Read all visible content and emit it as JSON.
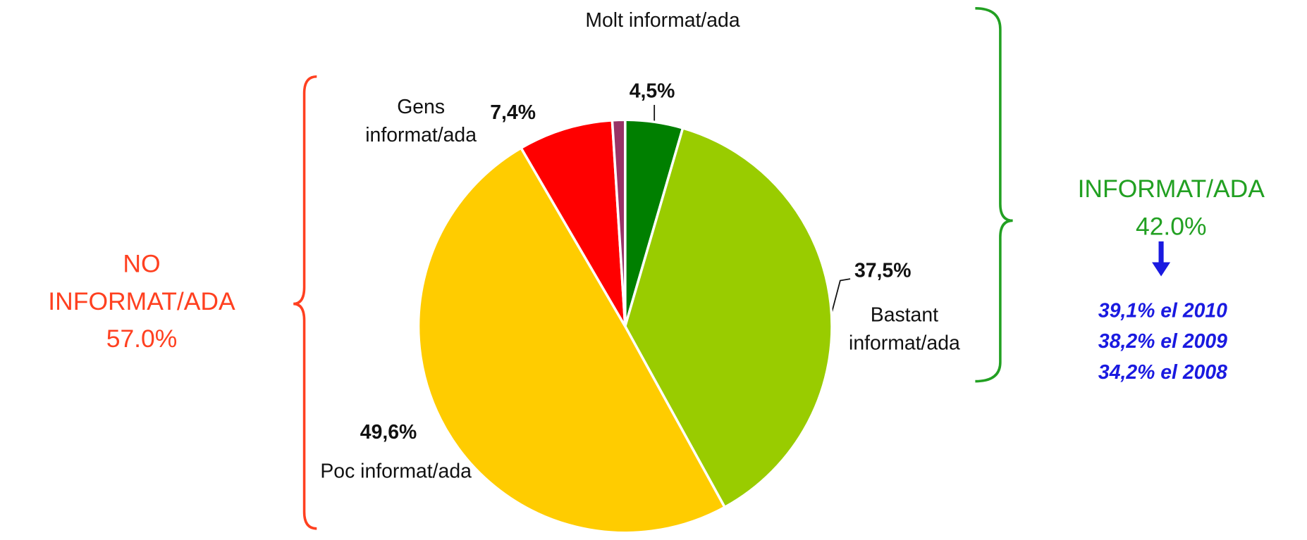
{
  "chart_data": {
    "type": "pie",
    "categories": [
      "Molt informat/ada",
      "Bastant informat/ada",
      "Poc informat/ada",
      "Gens informat/ada",
      null
    ],
    "values": [
      4.5,
      37.5,
      49.6,
      7.4,
      1.0
    ],
    "value_labels": [
      "4,5%",
      "37,5%",
      "49,6%",
      "7,4%",
      null
    ],
    "colors": [
      "#007f00",
      "#99cc00",
      "#ffcc00",
      "#ff0000",
      "#993366"
    ],
    "groups": [
      {
        "lines": [
          "NO",
          "INFORMAT/ADA",
          "57.0%"
        ],
        "color": "#ff4020"
      },
      {
        "lines": [
          "INFORMAT/ADA",
          "42.0%"
        ],
        "color": "#22a022"
      }
    ],
    "notes": [
      "39,1% el 2010",
      "38,2% el 2009",
      "34,2% el 2008"
    ],
    "notes_color": "#1a1ae0"
  }
}
